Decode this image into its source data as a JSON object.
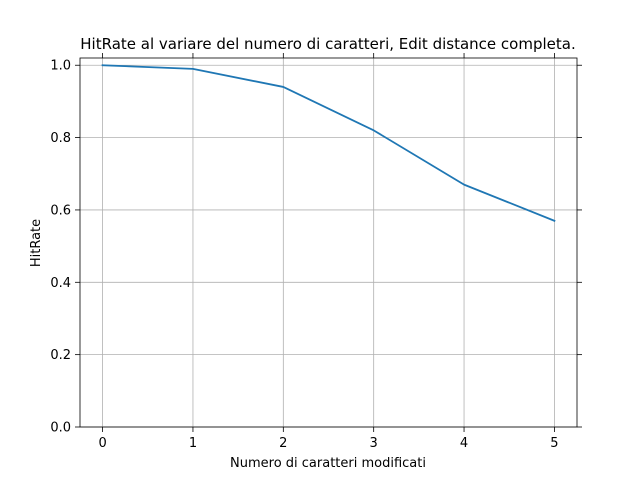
{
  "chart_data": {
    "type": "line",
    "title": "HitRate al variare del numero di caratteri, Edit distance completa.",
    "xlabel": "Numero di caratteri modificati",
    "ylabel": "HitRate",
    "x": [
      0,
      1,
      2,
      3,
      4,
      5
    ],
    "series": [
      {
        "values": [
          1.0,
          0.99,
          0.94,
          0.82,
          0.67,
          0.57
        ],
        "color": "#1f77b4"
      }
    ],
    "xlim": [
      -0.25,
      5.25
    ],
    "ylim": [
      0.0,
      1.02
    ],
    "xticks": [
      0,
      1,
      2,
      3,
      4,
      5
    ],
    "xtick_labels": [
      "0",
      "1",
      "2",
      "3",
      "4",
      "5"
    ],
    "yticks": [
      0.0,
      0.2,
      0.4,
      0.6,
      0.8,
      1.0
    ],
    "ytick_labels": [
      "0.0",
      "0.2",
      "0.4",
      "0.6",
      "0.8",
      "1.0"
    ],
    "grid": true,
    "colors": {
      "grid": "#b0b0b0",
      "axis": "#000000",
      "background": "#ffffff"
    }
  }
}
